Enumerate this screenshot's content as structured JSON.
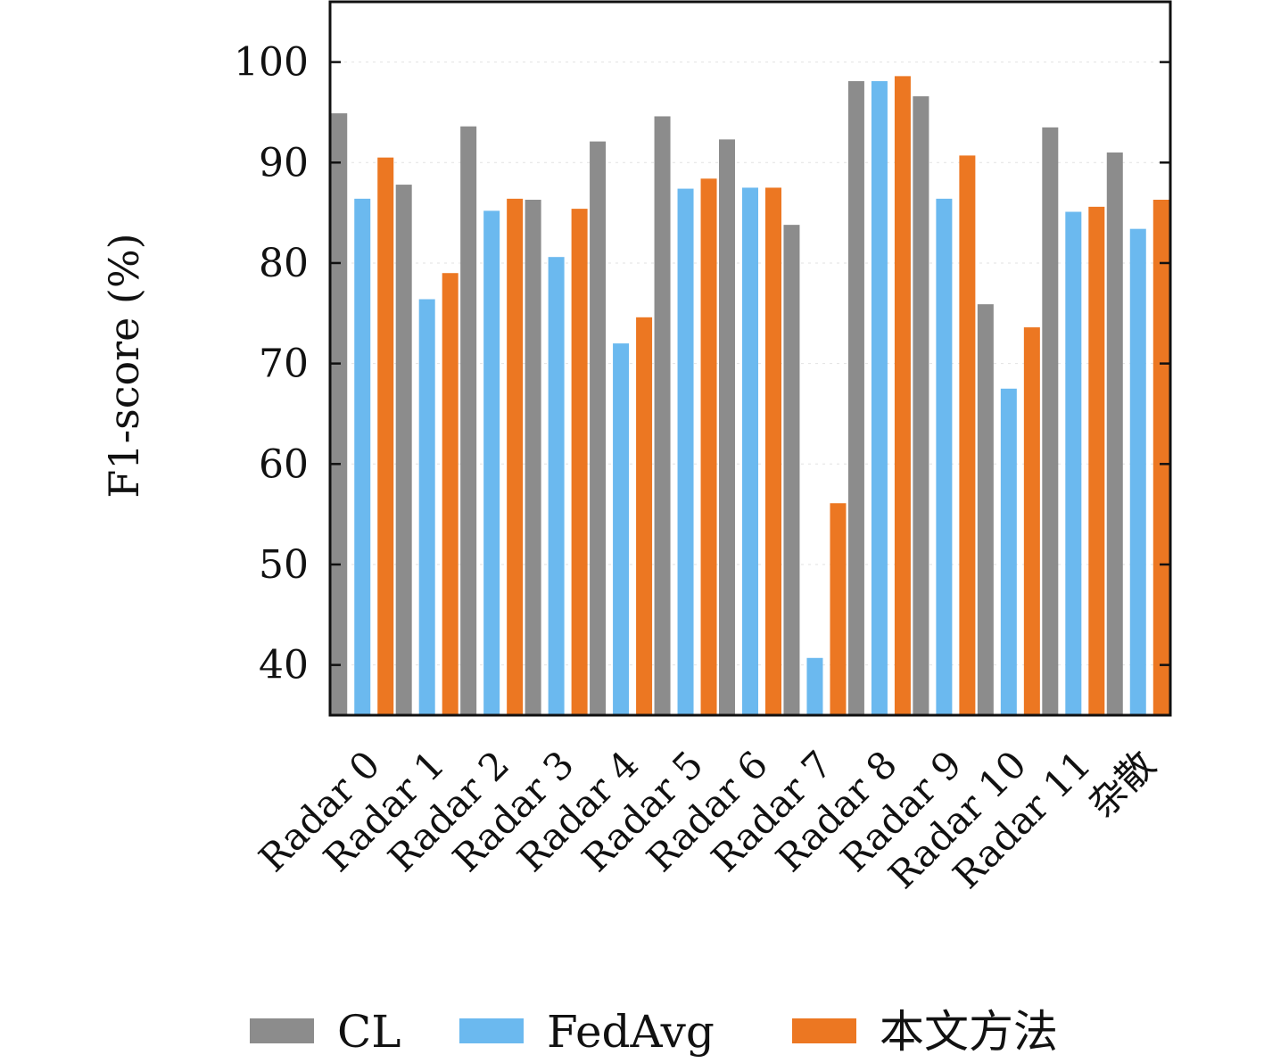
{
  "chart_data": {
    "type": "bar",
    "title": "",
    "xlabel": "",
    "ylabel": "F1-score (%)",
    "ylim": [
      35,
      106
    ],
    "yticks": [
      40,
      50,
      60,
      70,
      80,
      90,
      100
    ],
    "grid": true,
    "legend_position": "bottom",
    "categories": [
      "Radar 0",
      "Radar 1",
      "Radar 2",
      "Radar 3",
      "Radar 4",
      "Radar 5",
      "Radar 6",
      "Radar 7",
      "Radar 8",
      "Radar 9",
      "Radar 10",
      "Radar 11",
      "杂散"
    ],
    "series": [
      {
        "name": "CL",
        "color": "#8c8c8c",
        "values": [
          94.9,
          87.8,
          93.6,
          86.3,
          92.1,
          94.6,
          92.3,
          83.8,
          98.1,
          96.6,
          75.9,
          93.5,
          91.0
        ]
      },
      {
        "name": "FedAvg",
        "color": "#6bb9ef",
        "values": [
          86.4,
          76.4,
          85.2,
          80.6,
          72.0,
          87.4,
          87.5,
          40.7,
          98.1,
          86.4,
          67.5,
          85.1,
          83.4
        ]
      },
      {
        "name": "本文方法",
        "color": "#ec7722",
        "values": [
          90.5,
          79.0,
          86.4,
          85.4,
          74.6,
          88.4,
          87.5,
          56.1,
          98.6,
          90.7,
          73.6,
          85.6,
          86.3
        ]
      }
    ]
  }
}
